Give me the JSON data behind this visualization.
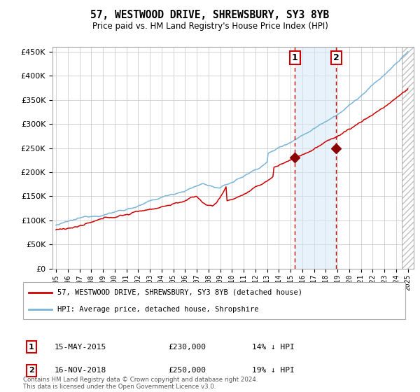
{
  "title": "57, WESTWOOD DRIVE, SHREWSBURY, SY3 8YB",
  "subtitle": "Price paid vs. HM Land Registry's House Price Index (HPI)",
  "legend_label_red": "57, WESTWOOD DRIVE, SHREWSBURY, SY3 8YB (detached house)",
  "legend_label_blue": "HPI: Average price, detached house, Shropshire",
  "annotation1_date": "15-MAY-2015",
  "annotation1_price": "£230,000",
  "annotation1_pct": "14% ↓ HPI",
  "annotation1_year": 2015.37,
  "annotation1_value": 230000,
  "annotation2_date": "16-NOV-2018",
  "annotation2_price": "£250,000",
  "annotation2_pct": "19% ↓ HPI",
  "annotation2_year": 2018.88,
  "annotation2_value": 250000,
  "footer": "Contains HM Land Registry data © Crown copyright and database right 2024.\nThis data is licensed under the Open Government Licence v3.0.",
  "hpi_color": "#7ab4d8",
  "price_color": "#cc0000",
  "marker_color": "#8b0000",
  "vline_color": "#cc0000",
  "shade_color": "#d6e8f7",
  "grid_color": "#cccccc",
  "ylim_max": 460000
}
